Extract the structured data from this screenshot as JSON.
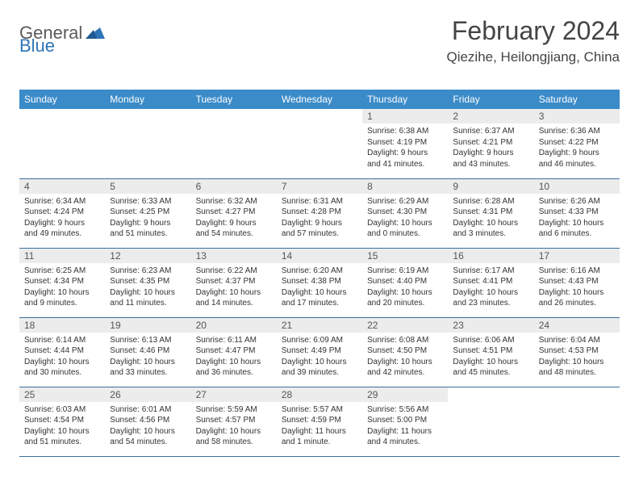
{
  "logo": {
    "text1": "General",
    "text2": "Blue"
  },
  "title": "February 2024",
  "location": "Qiezihe, Heilongjiang, China",
  "colors": {
    "header_bg": "#3b8bc9",
    "header_text": "#ffffff",
    "daynum_bg": "#ececec",
    "border": "#3b6fa0",
    "logo_gray": "#5a5a5a",
    "logo_blue": "#2e75b6"
  },
  "weekdays": [
    "Sunday",
    "Monday",
    "Tuesday",
    "Wednesday",
    "Thursday",
    "Friday",
    "Saturday"
  ],
  "weeks": [
    [
      null,
      null,
      null,
      null,
      {
        "n": "1",
        "sr": "Sunrise: 6:38 AM",
        "ss": "Sunset: 4:19 PM",
        "dl": "Daylight: 9 hours and 41 minutes."
      },
      {
        "n": "2",
        "sr": "Sunrise: 6:37 AM",
        "ss": "Sunset: 4:21 PM",
        "dl": "Daylight: 9 hours and 43 minutes."
      },
      {
        "n": "3",
        "sr": "Sunrise: 6:36 AM",
        "ss": "Sunset: 4:22 PM",
        "dl": "Daylight: 9 hours and 46 minutes."
      }
    ],
    [
      {
        "n": "4",
        "sr": "Sunrise: 6:34 AM",
        "ss": "Sunset: 4:24 PM",
        "dl": "Daylight: 9 hours and 49 minutes."
      },
      {
        "n": "5",
        "sr": "Sunrise: 6:33 AM",
        "ss": "Sunset: 4:25 PM",
        "dl": "Daylight: 9 hours and 51 minutes."
      },
      {
        "n": "6",
        "sr": "Sunrise: 6:32 AM",
        "ss": "Sunset: 4:27 PM",
        "dl": "Daylight: 9 hours and 54 minutes."
      },
      {
        "n": "7",
        "sr": "Sunrise: 6:31 AM",
        "ss": "Sunset: 4:28 PM",
        "dl": "Daylight: 9 hours and 57 minutes."
      },
      {
        "n": "8",
        "sr": "Sunrise: 6:29 AM",
        "ss": "Sunset: 4:30 PM",
        "dl": "Daylight: 10 hours and 0 minutes."
      },
      {
        "n": "9",
        "sr": "Sunrise: 6:28 AM",
        "ss": "Sunset: 4:31 PM",
        "dl": "Daylight: 10 hours and 3 minutes."
      },
      {
        "n": "10",
        "sr": "Sunrise: 6:26 AM",
        "ss": "Sunset: 4:33 PM",
        "dl": "Daylight: 10 hours and 6 minutes."
      }
    ],
    [
      {
        "n": "11",
        "sr": "Sunrise: 6:25 AM",
        "ss": "Sunset: 4:34 PM",
        "dl": "Daylight: 10 hours and 9 minutes."
      },
      {
        "n": "12",
        "sr": "Sunrise: 6:23 AM",
        "ss": "Sunset: 4:35 PM",
        "dl": "Daylight: 10 hours and 11 minutes."
      },
      {
        "n": "13",
        "sr": "Sunrise: 6:22 AM",
        "ss": "Sunset: 4:37 PM",
        "dl": "Daylight: 10 hours and 14 minutes."
      },
      {
        "n": "14",
        "sr": "Sunrise: 6:20 AM",
        "ss": "Sunset: 4:38 PM",
        "dl": "Daylight: 10 hours and 17 minutes."
      },
      {
        "n": "15",
        "sr": "Sunrise: 6:19 AM",
        "ss": "Sunset: 4:40 PM",
        "dl": "Daylight: 10 hours and 20 minutes."
      },
      {
        "n": "16",
        "sr": "Sunrise: 6:17 AM",
        "ss": "Sunset: 4:41 PM",
        "dl": "Daylight: 10 hours and 23 minutes."
      },
      {
        "n": "17",
        "sr": "Sunrise: 6:16 AM",
        "ss": "Sunset: 4:43 PM",
        "dl": "Daylight: 10 hours and 26 minutes."
      }
    ],
    [
      {
        "n": "18",
        "sr": "Sunrise: 6:14 AM",
        "ss": "Sunset: 4:44 PM",
        "dl": "Daylight: 10 hours and 30 minutes."
      },
      {
        "n": "19",
        "sr": "Sunrise: 6:13 AM",
        "ss": "Sunset: 4:46 PM",
        "dl": "Daylight: 10 hours and 33 minutes."
      },
      {
        "n": "20",
        "sr": "Sunrise: 6:11 AM",
        "ss": "Sunset: 4:47 PM",
        "dl": "Daylight: 10 hours and 36 minutes."
      },
      {
        "n": "21",
        "sr": "Sunrise: 6:09 AM",
        "ss": "Sunset: 4:49 PM",
        "dl": "Daylight: 10 hours and 39 minutes."
      },
      {
        "n": "22",
        "sr": "Sunrise: 6:08 AM",
        "ss": "Sunset: 4:50 PM",
        "dl": "Daylight: 10 hours and 42 minutes."
      },
      {
        "n": "23",
        "sr": "Sunrise: 6:06 AM",
        "ss": "Sunset: 4:51 PM",
        "dl": "Daylight: 10 hours and 45 minutes."
      },
      {
        "n": "24",
        "sr": "Sunrise: 6:04 AM",
        "ss": "Sunset: 4:53 PM",
        "dl": "Daylight: 10 hours and 48 minutes."
      }
    ],
    [
      {
        "n": "25",
        "sr": "Sunrise: 6:03 AM",
        "ss": "Sunset: 4:54 PM",
        "dl": "Daylight: 10 hours and 51 minutes."
      },
      {
        "n": "26",
        "sr": "Sunrise: 6:01 AM",
        "ss": "Sunset: 4:56 PM",
        "dl": "Daylight: 10 hours and 54 minutes."
      },
      {
        "n": "27",
        "sr": "Sunrise: 5:59 AM",
        "ss": "Sunset: 4:57 PM",
        "dl": "Daylight: 10 hours and 58 minutes."
      },
      {
        "n": "28",
        "sr": "Sunrise: 5:57 AM",
        "ss": "Sunset: 4:59 PM",
        "dl": "Daylight: 11 hours and 1 minute."
      },
      {
        "n": "29",
        "sr": "Sunrise: 5:56 AM",
        "ss": "Sunset: 5:00 PM",
        "dl": "Daylight: 11 hours and 4 minutes."
      },
      null,
      null
    ]
  ]
}
